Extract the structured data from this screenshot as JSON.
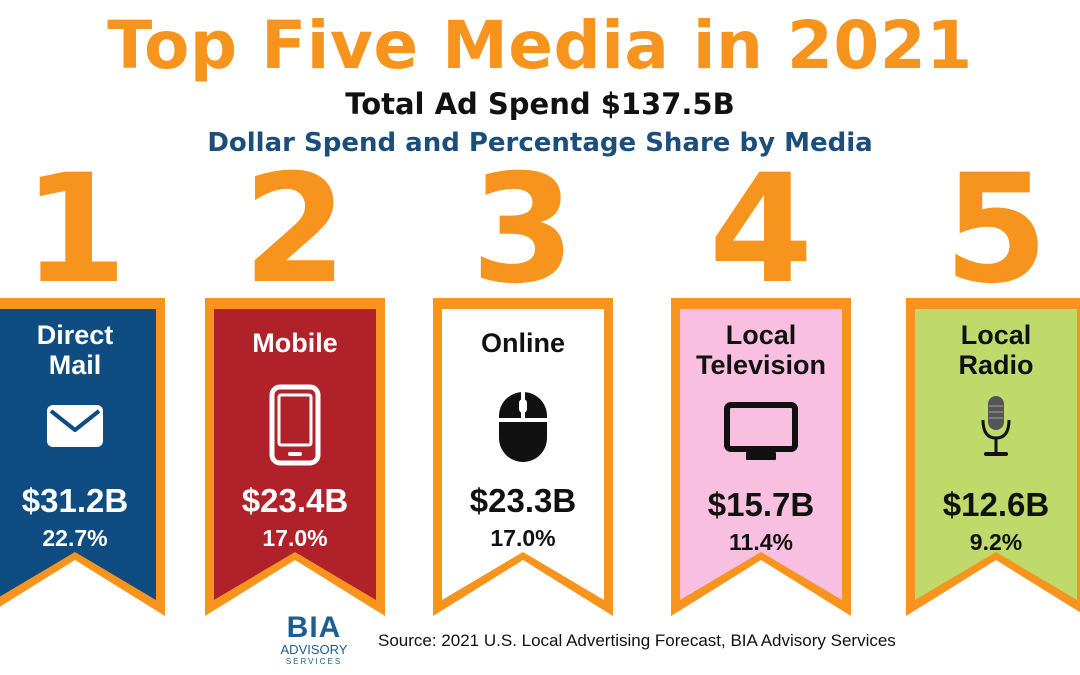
{
  "header": {
    "title": "Top Five Media in 2021",
    "subtitle": "Total Ad Spend $137.5B",
    "subtitle2": "Dollar Spend and Percentage Share by Media"
  },
  "colors": {
    "accent": "#f7941d",
    "heading_blue": "#1b4e7b"
  },
  "chart_data": {
    "type": "table",
    "title": "Top Five Media in 2021",
    "subtitle": "Total Ad Spend $137.5B",
    "categories": [
      "Direct Mail",
      "Mobile",
      "Online",
      "Local Television",
      "Local Radio"
    ],
    "series": [
      {
        "name": "Dollar Spend",
        "unit": "$B",
        "values": [
          31.2,
          23.4,
          23.3,
          15.7,
          12.6
        ]
      },
      {
        "name": "Percentage Share",
        "unit": "%",
        "values": [
          22.7,
          17.0,
          17.0,
          11.4,
          9.2
        ]
      }
    ],
    "items": [
      {
        "rank": "1",
        "label_line1": "Direct",
        "label_line2": "Mail",
        "spend": "$31.2B",
        "share": "22.7%",
        "icon": "envelope-icon",
        "fill": "#0f4c81",
        "text_color": "#ffffff"
      },
      {
        "rank": "2",
        "label_line1": "Mobile",
        "label_line2": "",
        "spend": "$23.4B",
        "share": "17.0%",
        "icon": "smartphone-icon",
        "fill": "#b0212a",
        "text_color": "#ffffff"
      },
      {
        "rank": "3",
        "label_line1": "Online",
        "label_line2": "",
        "spend": "$23.3B",
        "share": "17.0%",
        "icon": "computer-mouse-icon",
        "fill": "#ffffff",
        "text_color": "#111111"
      },
      {
        "rank": "4",
        "label_line1": "Local",
        "label_line2": "Television",
        "spend": "$15.7B",
        "share": "11.4%",
        "icon": "television-icon",
        "fill": "#f9bfe0",
        "text_color": "#111111"
      },
      {
        "rank": "5",
        "label_line1": "Local",
        "label_line2": "Radio",
        "spend": "$12.6B",
        "share": "9.2%",
        "icon": "microphone-icon",
        "fill": "#bfd96a",
        "text_color": "#111111"
      }
    ]
  },
  "footer": {
    "logo_main": "BIA",
    "logo_sub1": "ADVISORY",
    "logo_sub2": "SERVICES",
    "source": "Source: 2021 U.S. Local Advertising Forecast, BIA Advisory Services"
  }
}
